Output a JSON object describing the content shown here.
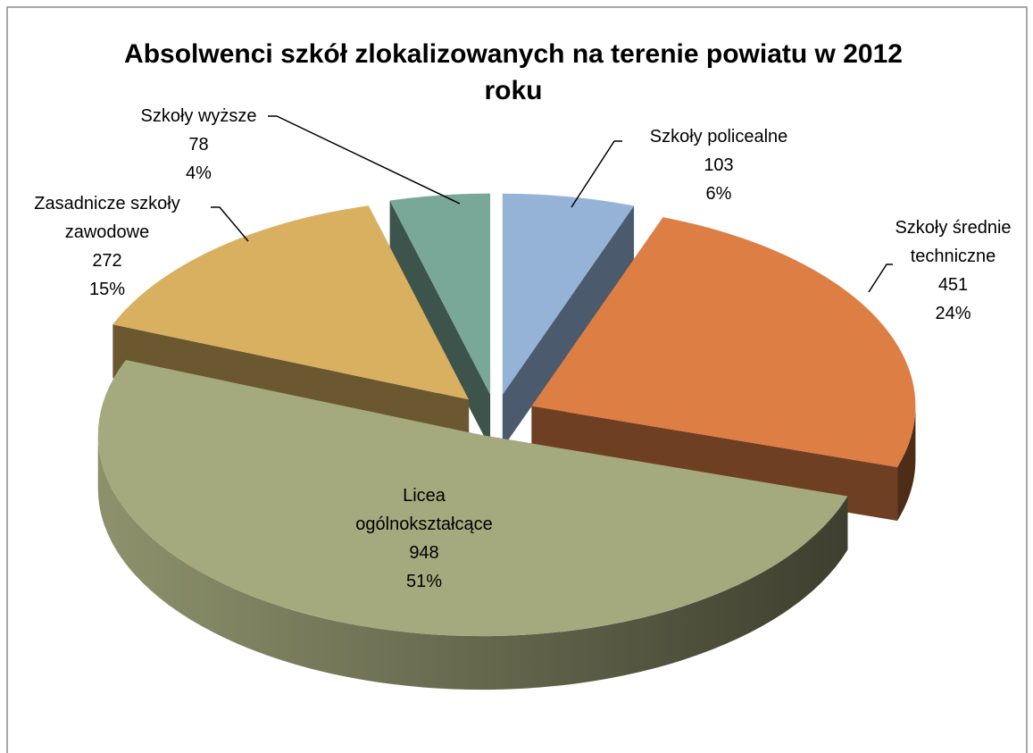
{
  "chart_data": {
    "type": "pie3d",
    "title": "Absolwenci szkół zlokalizowanych na terenie powiatu w 2012 roku",
    "categories": [
      "Szkoły policealne",
      "Szkoły średnie techniczne",
      "Licea ogólnokształcące",
      "Zasadnicze szkoły zawodowe",
      "Szkoły wyższe"
    ],
    "values": [
      103,
      451,
      948,
      272,
      78
    ],
    "percent_labels": [
      "6%",
      "24%",
      "51%",
      "15%",
      "4%"
    ],
    "colors": [
      "#95b3d7",
      "#dd7e45",
      "#a5aa7e",
      "#d8b060",
      "#7aa898"
    ]
  }
}
